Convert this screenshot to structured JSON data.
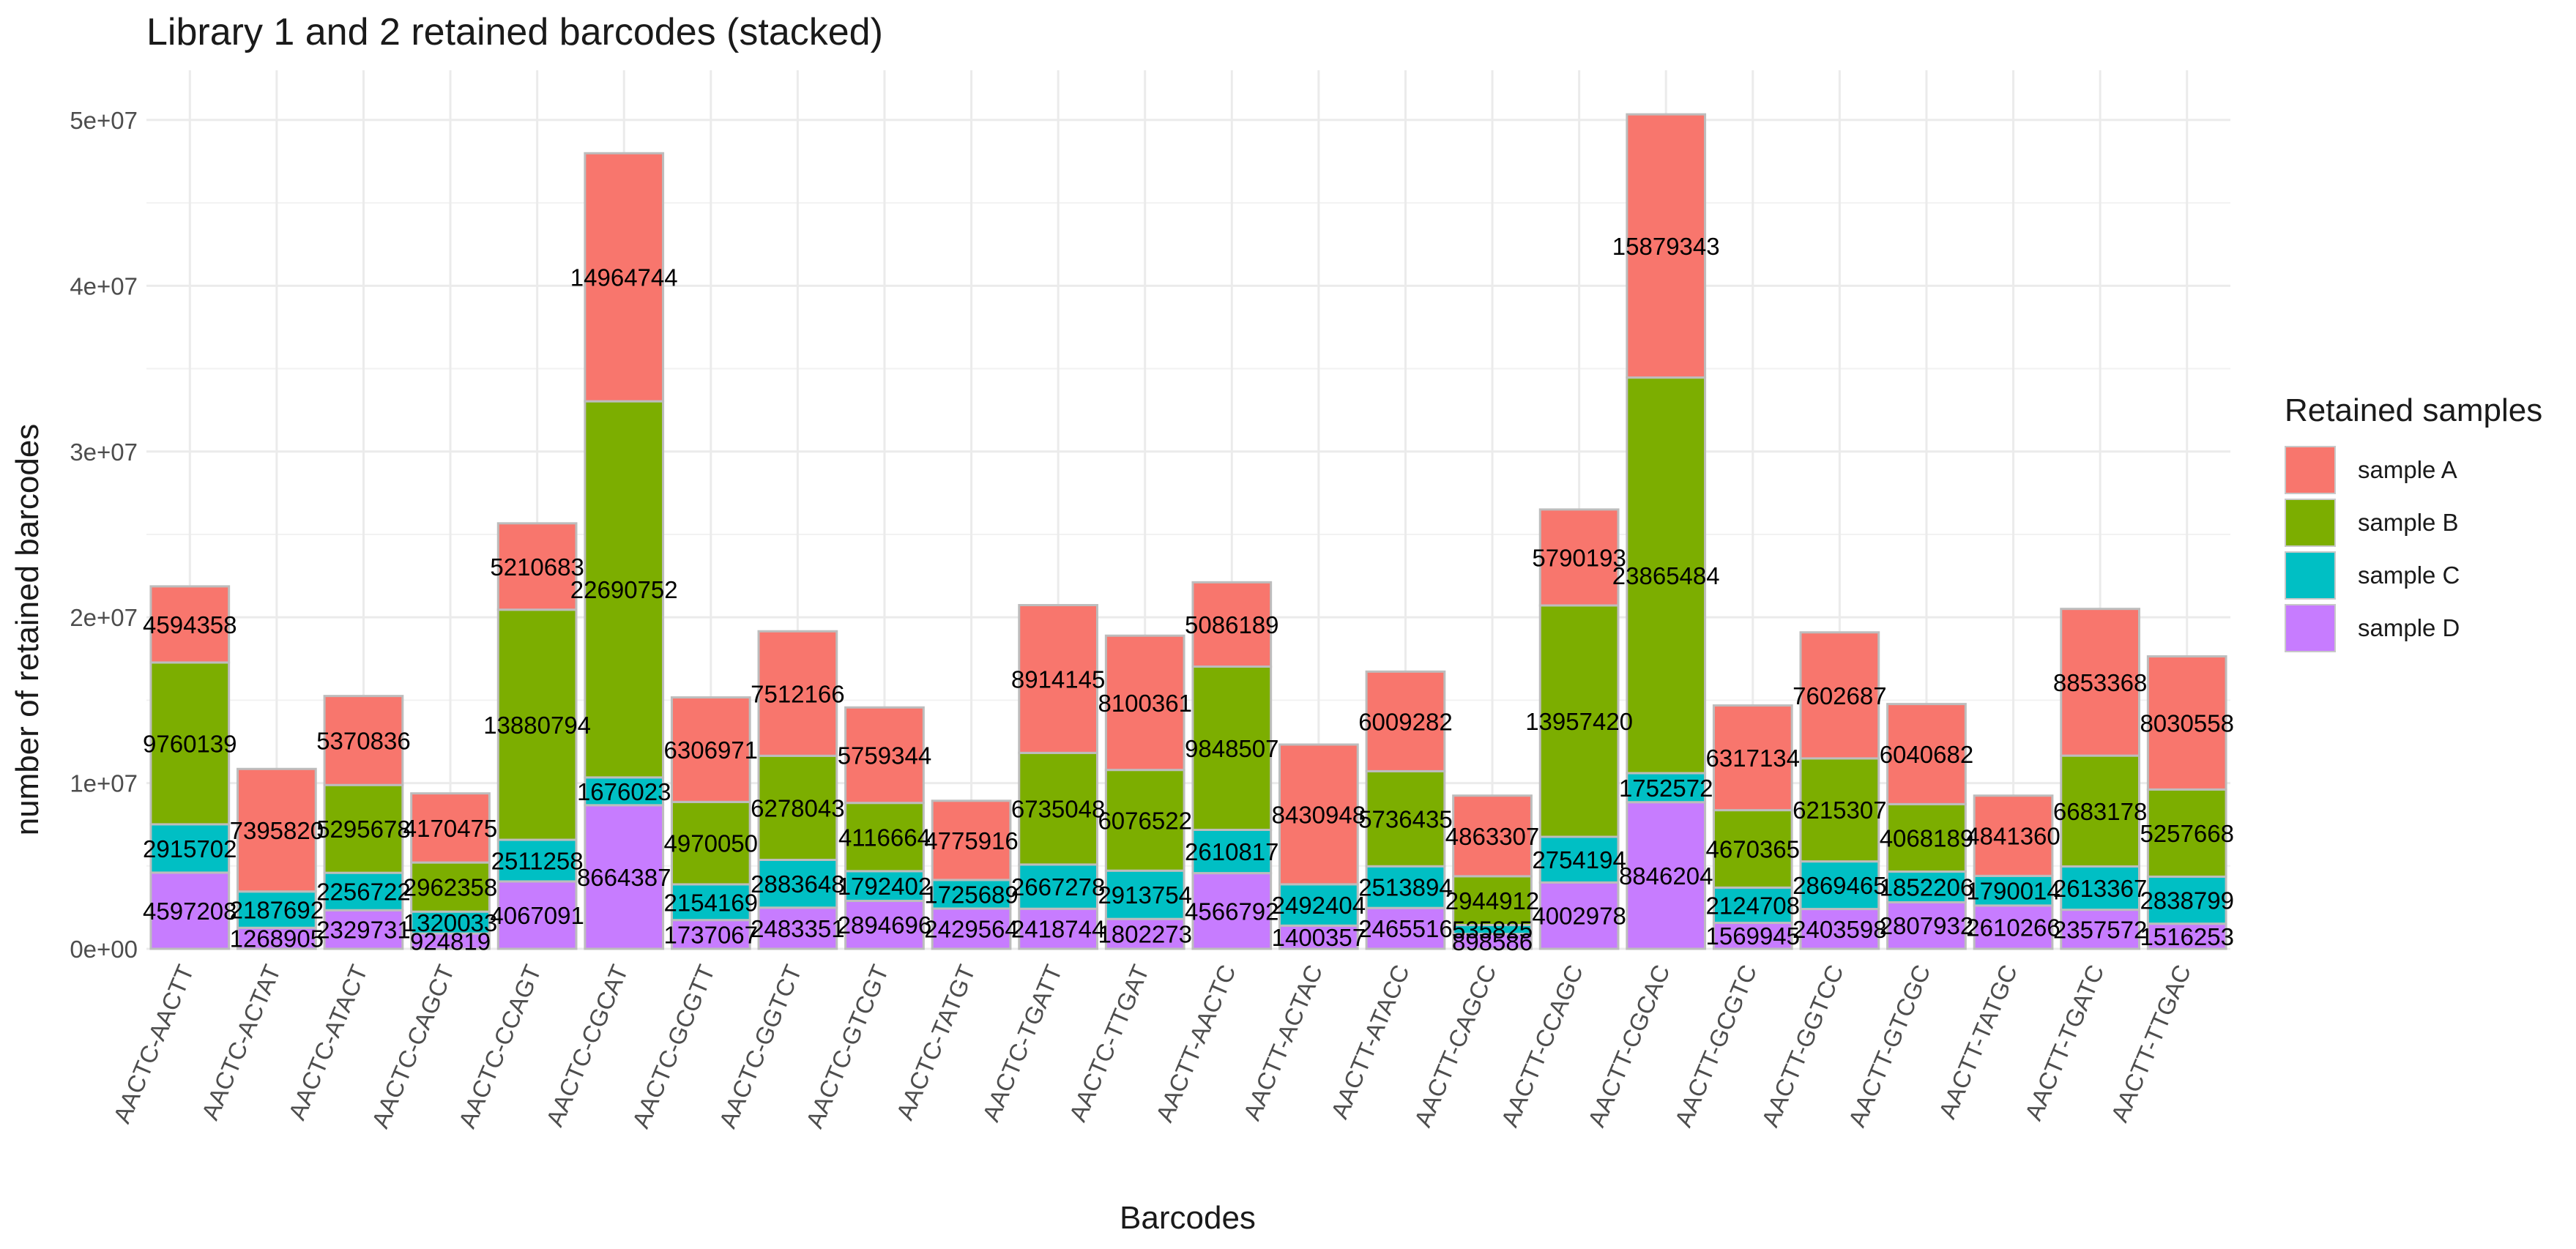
{
  "chart_data": {
    "type": "bar",
    "stacked": true,
    "title": "Library 1 and 2 retained barcodes (stacked)",
    "xlabel": "Barcodes",
    "ylabel": "number of retained barcodes",
    "ylim": [
      0,
      53000000
    ],
    "yticks": [
      0,
      10000000,
      20000000,
      30000000,
      40000000,
      50000000
    ],
    "ytick_labels": [
      "0e+00",
      "1e+07",
      "2e+07",
      "3e+07",
      "4e+07",
      "5e+07"
    ],
    "grid": true,
    "legend": {
      "title": "Retained samples",
      "position": "right"
    },
    "categories": [
      "AACTC-AACTT",
      "AACTC-ACTAT",
      "AACTC-ATACT",
      "AACTC-CAGCT",
      "AACTC-CCAGT",
      "AACTC-CGCAT",
      "AACTC-GCGTT",
      "AACTC-GGTCT",
      "AACTC-GTCGT",
      "AACTC-TATGT",
      "AACTC-TGATT",
      "AACTC-TTGAT",
      "AACTT-AACTC",
      "AACTT-ACTAC",
      "AACTT-ATACC",
      "AACTT-CAGCC",
      "AACTT-CCAGC",
      "AACTT-CGCAC",
      "AACTT-GCGTC",
      "AACTT-GGTCC",
      "AACTT-GTCGC",
      "AACTT-TATGC",
      "AACTT-TGATC",
      "AACTT-TTGAC"
    ],
    "series": [
      {
        "name": "sample D",
        "color": "#C77CFF",
        "values": [
          4597208,
          1268905,
          2329731,
          924819,
          4067091,
          8664387,
          1737067,
          2483351,
          2894696,
          2429564,
          2418744,
          1802273,
          4566792,
          1400357,
          2465516,
          898586,
          4002978,
          8846204,
          1569945,
          2403598,
          2807932,
          2610266,
          2357572,
          1516253
        ],
        "labels": [
          "4597208",
          "1268905",
          "2329731",
          "924819",
          "4067091",
          "8664387",
          "1737067",
          "2483351",
          "2894696",
          "2429564",
          "2418744",
          "1802273",
          "4566792",
          "1400357",
          "2465516",
          "898586",
          "4002978",
          "8846204",
          "1569945",
          "2403598",
          "2807932",
          "2610266",
          "2357572",
          "1516253"
        ]
      },
      {
        "name": "sample C",
        "color": "#00BFC4",
        "values": [
          2915702,
          2187692,
          2256722,
          1320033,
          2511258,
          1676023,
          2154169,
          2883648,
          1792402,
          1725689,
          2667278,
          2913754,
          2610817,
          2492404,
          2513894,
          535825,
          2754194,
          1752572,
          2124708,
          2869465,
          1852206,
          1790014,
          2613367,
          2838799
        ],
        "labels": [
          "2915702",
          "2187692",
          "2256722",
          "1320033",
          "2511258",
          "1676023",
          "2154169",
          "2883648",
          "1792402",
          "1725689",
          "2667278",
          "2913754",
          "2610817",
          "2492404",
          "2513894",
          "535825",
          "2754194",
          "1752572",
          "2124708",
          "2869465",
          "1852206",
          "1790014",
          "2613367",
          "2838799"
        ]
      },
      {
        "name": "sample B",
        "color": "#7CAE00",
        "values": [
          9760139,
          0,
          5295678,
          2962358,
          13880794,
          22690752,
          4970050,
          6278043,
          4116664,
          0,
          6735048,
          6076522,
          9848507,
          0,
          5736435,
          2944912,
          13957420,
          23865484,
          4670365,
          6215307,
          4068189,
          0,
          6683178,
          5257668
        ],
        "labels": [
          "9760139",
          "",
          "5295678",
          "2962358",
          "13880794",
          "22690752",
          "4970050",
          "6278043",
          "4116664",
          "",
          "6735048",
          "6076522",
          "9848507",
          "",
          "5736435",
          "2944912",
          "13957420",
          "23865484",
          "4670365",
          "6215307",
          "4068189",
          "",
          "6683178",
          "5257668"
        ]
      },
      {
        "name": "sample A",
        "color": "#F8766D",
        "values": [
          4594358,
          7395820,
          5370836,
          4170475,
          5210683,
          14964744,
          6306971,
          7512166,
          5759344,
          4775916,
          8914145,
          8100361,
          5086189,
          8430948,
          6009282,
          4863307,
          5790193,
          15879343,
          6317134,
          7602687,
          6040682,
          4841360,
          8853368,
          8030558
        ],
        "labels": [
          "4594358",
          "7395820",
          "5370836",
          "4170475",
          "5210683",
          "14964744",
          "6306971",
          "7512166",
          "5759344",
          "4775916",
          "8914145",
          "8100361",
          "5086189",
          "8430948",
          "6009282",
          "4863307",
          "5790193",
          "15879343",
          "6317134",
          "7602687",
          "6040682",
          "4841360",
          "8853368",
          "8030558"
        ]
      }
    ]
  }
}
